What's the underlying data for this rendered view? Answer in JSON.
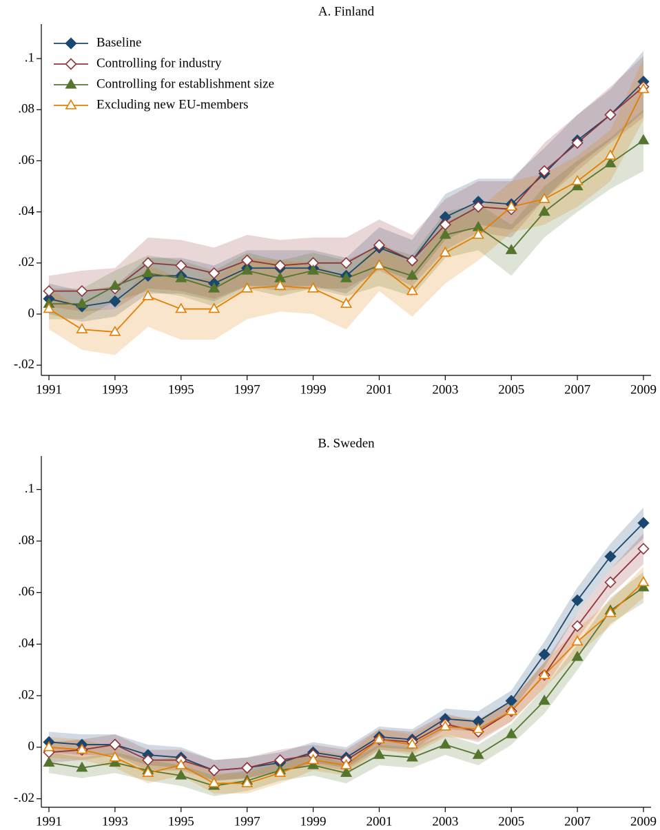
{
  "chart_data": [
    {
      "type": "line",
      "title": "A. Finland",
      "x": [
        1991,
        1992,
        1993,
        1994,
        1995,
        1996,
        1997,
        1998,
        1999,
        2000,
        2001,
        2002,
        2003,
        2004,
        2005,
        2006,
        2007,
        2008,
        2009
      ],
      "xlim": [
        1990.77,
        2009.23
      ],
      "xticks": [
        1991,
        1993,
        1995,
        1997,
        1999,
        2001,
        2003,
        2005,
        2007,
        2009
      ],
      "ylim": [
        -0.024,
        0.1135
      ],
      "yticks": [
        {
          "value": -0.02,
          "label": "-.02"
        },
        0,
        {
          "value": 0.02,
          "label": ".02"
        },
        {
          "value": 0.04,
          "label": ".04"
        },
        {
          "value": 0.06,
          "label": ".06"
        },
        {
          "value": 0.08,
          "label": ".08"
        },
        {
          "value": 0.1,
          "label": ".1"
        }
      ],
      "legend": "top-left",
      "series": [
        {
          "name": "Baseline",
          "color": "#1a476f",
          "marker": "diamond",
          "filled": true,
          "values": [
            0.006,
            0.003,
            0.005,
            0.015,
            0.015,
            0.012,
            0.018,
            0.018,
            0.018,
            0.015,
            0.026,
            0.021,
            0.038,
            0.044,
            0.043,
            0.055,
            0.068,
            0.078,
            0.091
          ],
          "ci": [
            0.006,
            0.006,
            0.006,
            0.007,
            0.007,
            0.007,
            0.007,
            0.007,
            0.007,
            0.007,
            0.008,
            0.008,
            0.009,
            0.009,
            0.01,
            0.01,
            0.01,
            0.01,
            0.012
          ]
        },
        {
          "name": "Controlling for industry",
          "color": "#90353b",
          "marker": "diamond",
          "filled": false,
          "values": [
            0.009,
            0.009,
            0.01,
            0.02,
            0.019,
            0.016,
            0.021,
            0.019,
            0.02,
            0.02,
            0.027,
            0.021,
            0.035,
            0.042,
            0.041,
            0.056,
            0.067,
            0.078,
            0.089
          ],
          "ci": [
            0.006,
            0.008,
            0.008,
            0.01,
            0.01,
            0.01,
            0.01,
            0.01,
            0.01,
            0.01,
            0.01,
            0.01,
            0.01,
            0.01,
            0.011,
            0.011,
            0.011,
            0.011,
            0.012
          ]
        },
        {
          "name": "Controlling for establishment size",
          "color": "#55752f",
          "marker": "triangle",
          "filled": true,
          "values": [
            0.004,
            0.004,
            0.011,
            0.016,
            0.014,
            0.01,
            0.017,
            0.014,
            0.017,
            0.014,
            0.019,
            0.015,
            0.031,
            0.034,
            0.025,
            0.04,
            0.05,
            0.059,
            0.068
          ],
          "ci": [
            0.006,
            0.006,
            0.006,
            0.007,
            0.007,
            0.007,
            0.007,
            0.007,
            0.007,
            0.007,
            0.008,
            0.008,
            0.009,
            0.009,
            0.01,
            0.01,
            0.01,
            0.01,
            0.012
          ]
        },
        {
          "name": "Excluding new EU-members",
          "color": "#e37e00",
          "marker": "triangle",
          "filled": false,
          "values": [
            0.002,
            -0.006,
            -0.007,
            0.007,
            0.002,
            0.002,
            0.01,
            0.011,
            0.01,
            0.004,
            0.019,
            0.009,
            0.024,
            0.031,
            0.042,
            0.045,
            0.052,
            0.062,
            0.088
          ],
          "ci": [
            0.008,
            0.008,
            0.009,
            0.012,
            0.012,
            0.012,
            0.012,
            0.01,
            0.01,
            0.01,
            0.01,
            0.01,
            0.012,
            0.01,
            0.01,
            0.01,
            0.01,
            0.01,
            0.012
          ]
        }
      ]
    },
    {
      "type": "line",
      "title": "B. Sweden",
      "x": [
        1991,
        1992,
        1993,
        1994,
        1995,
        1996,
        1997,
        1998,
        1999,
        2000,
        2001,
        2002,
        2003,
        2004,
        2005,
        2006,
        2007,
        2008,
        2009
      ],
      "xlim": [
        1990.77,
        2009.23
      ],
      "xticks": [
        1991,
        1993,
        1995,
        1997,
        1999,
        2001,
        2003,
        2005,
        2007,
        2009
      ],
      "ylim": [
        -0.0233,
        0.113
      ],
      "yticks": [
        {
          "value": -0.02,
          "label": "-.02"
        },
        0,
        {
          "value": 0.02,
          "label": ".02"
        },
        {
          "value": 0.04,
          "label": ".04"
        },
        {
          "value": 0.06,
          "label": ".06"
        },
        {
          "value": 0.08,
          "label": ".08"
        },
        {
          "value": 0.1,
          "label": ".1"
        }
      ],
      "series": [
        {
          "color": "#1a476f",
          "marker": "diamond",
          "filled": true,
          "values": [
            0.002,
            0.001,
            0.001,
            -0.003,
            -0.004,
            -0.009,
            -0.008,
            -0.006,
            -0.002,
            -0.004,
            0.004,
            0.003,
            0.011,
            0.01,
            0.018,
            0.036,
            0.057,
            0.074,
            0.087
          ],
          "ci": [
            0.004,
            0.004,
            0.004,
            0.004,
            0.004,
            0.004,
            0.004,
            0.004,
            0.004,
            0.004,
            0.004,
            0.004,
            0.004,
            0.004,
            0.004,
            0.005,
            0.005,
            0.005,
            0.006
          ]
        },
        {
          "color": "#90353b",
          "marker": "diamond",
          "filled": false,
          "values": [
            -0.002,
            -0.001,
            0.001,
            -0.005,
            -0.005,
            -0.009,
            -0.008,
            -0.005,
            -0.003,
            -0.005,
            0.003,
            0.002,
            0.009,
            0.006,
            0.014,
            0.028,
            0.047,
            0.064,
            0.077
          ],
          "ci": [
            0.004,
            0.004,
            0.004,
            0.004,
            0.004,
            0.004,
            0.004,
            0.004,
            0.004,
            0.004,
            0.004,
            0.004,
            0.004,
            0.004,
            0.004,
            0.005,
            0.005,
            0.005,
            0.006
          ]
        },
        {
          "color": "#55752f",
          "marker": "triangle",
          "filled": true,
          "values": [
            -0.006,
            -0.008,
            -0.006,
            -0.009,
            -0.011,
            -0.015,
            -0.013,
            -0.009,
            -0.007,
            -0.01,
            -0.003,
            -0.004,
            0.001,
            -0.003,
            0.005,
            0.018,
            0.035,
            0.053,
            0.062
          ],
          "ci": [
            0.004,
            0.004,
            0.004,
            0.004,
            0.004,
            0.004,
            0.004,
            0.004,
            0.004,
            0.004,
            0.004,
            0.004,
            0.004,
            0.004,
            0.004,
            0.005,
            0.005,
            0.005,
            0.006
          ]
        },
        {
          "color": "#e37e00",
          "marker": "triangle",
          "filled": false,
          "values": [
            0,
            -0.001,
            -0.004,
            -0.01,
            -0.007,
            -0.014,
            -0.014,
            -0.01,
            -0.005,
            -0.007,
            0.003,
            0.001,
            0.008,
            0.007,
            0.014,
            0.028,
            0.041,
            0.052,
            0.064
          ],
          "ci": [
            0.004,
            0.004,
            0.004,
            0.004,
            0.004,
            0.004,
            0.004,
            0.004,
            0.004,
            0.004,
            0.004,
            0.004,
            0.004,
            0.004,
            0.004,
            0.005,
            0.005,
            0.005,
            0.006
          ]
        }
      ]
    }
  ]
}
